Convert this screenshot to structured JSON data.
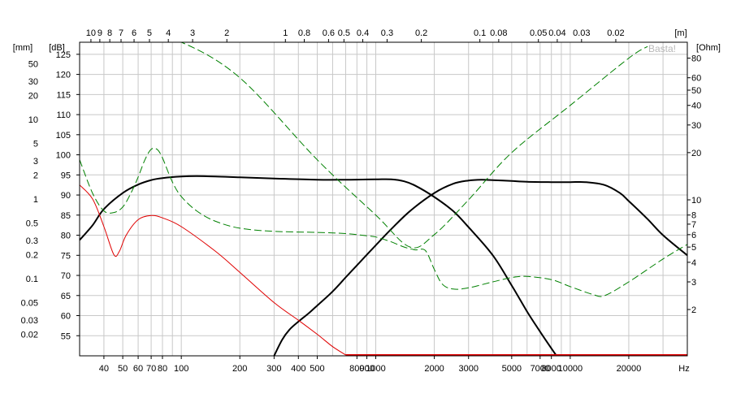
{
  "chart_data": {
    "type": "line",
    "x_axis": {
      "scale": "log",
      "range": [
        30,
        40000
      ],
      "unit_label": "Hz",
      "ticks": [
        {
          "value": 40,
          "label": "40"
        },
        {
          "value": 50,
          "label": "50"
        },
        {
          "value": 60,
          "label": "60"
        },
        {
          "value": 70,
          "label": "70"
        },
        {
          "value": 80,
          "label": "80"
        },
        {
          "value": 100,
          "label": "100"
        },
        {
          "value": 200,
          "label": "200"
        },
        {
          "value": 300,
          "label": "300"
        },
        {
          "value": 400,
          "label": "400"
        },
        {
          "value": 500,
          "label": "500"
        },
        {
          "value": 800,
          "label": "800"
        },
        {
          "value": 900,
          "label": "900"
        },
        {
          "value": 1000,
          "label": "1000"
        },
        {
          "value": 2000,
          "label": "2000"
        },
        {
          "value": 3000,
          "label": "3000"
        },
        {
          "value": 5000,
          "label": "5000"
        },
        {
          "value": 7000,
          "label": "7000"
        },
        {
          "value": 8000,
          "label": "8000"
        },
        {
          "value": 10000,
          "label": "10000"
        },
        {
          "value": 20000,
          "label": "20000"
        }
      ]
    },
    "top_axis": {
      "unit_label": "[m]",
      "ticks": [
        {
          "value": 10,
          "label": "10"
        },
        {
          "value": 9,
          "label": "9"
        },
        {
          "value": 8,
          "label": "8"
        },
        {
          "value": 7,
          "label": "7"
        },
        {
          "value": 6,
          "label": "6"
        },
        {
          "value": 5,
          "label": "5"
        },
        {
          "value": 4,
          "label": "4"
        },
        {
          "value": 3,
          "label": "3"
        },
        {
          "value": 2,
          "label": "2"
        },
        {
          "value": 1,
          "label": "1"
        },
        {
          "value": 0.8,
          "label": "0.8"
        },
        {
          "value": 0.6,
          "label": "0.6"
        },
        {
          "value": 0.5,
          "label": "0.5"
        },
        {
          "value": 0.4,
          "label": "0.4"
        },
        {
          "value": 0.3,
          "label": "0.3"
        },
        {
          "value": 0.2,
          "label": "0.2"
        },
        {
          "value": 0.1,
          "label": "0.1"
        },
        {
          "value": 0.08,
          "label": "0.08"
        },
        {
          "value": 0.05,
          "label": "0.05"
        },
        {
          "value": 0.04,
          "label": "0.04"
        },
        {
          "value": 0.03,
          "label": "0.03"
        },
        {
          "value": 0.02,
          "label": "0.02"
        }
      ]
    },
    "y_axis_db": {
      "unit_label": "[dB]",
      "range": [
        50,
        128
      ],
      "ticks": [
        55,
        60,
        65,
        70,
        75,
        80,
        85,
        90,
        95,
        100,
        105,
        110,
        115,
        120,
        125
      ]
    },
    "y_axis_mm": {
      "unit_label": "[mm]",
      "scale": "log",
      "ticks": [
        {
          "value": 50,
          "label": "50"
        },
        {
          "value": 30,
          "label": "30"
        },
        {
          "value": 20,
          "label": "20"
        },
        {
          "value": 10,
          "label": "10"
        },
        {
          "value": 5,
          "label": "5"
        },
        {
          "value": 3,
          "label": "3"
        },
        {
          "value": 2,
          "label": "2"
        },
        {
          "value": 1,
          "label": "1"
        },
        {
          "value": 0.5,
          "label": "0.5"
        },
        {
          "value": 0.3,
          "label": "0.3"
        },
        {
          "value": 0.2,
          "label": "0.2"
        },
        {
          "value": 0.1,
          "label": "0.1"
        },
        {
          "value": 0.05,
          "label": "0.05"
        },
        {
          "value": 0.03,
          "label": "0.03"
        },
        {
          "value": 0.02,
          "label": "0.02"
        }
      ]
    },
    "y_axis_ohm": {
      "unit_label": "[Ohm]",
      "scale": "log",
      "ticks": [
        {
          "value": 80,
          "label": "80"
        },
        {
          "value": 60,
          "label": "60"
        },
        {
          "value": 50,
          "label": "50"
        },
        {
          "value": 40,
          "label": "40"
        },
        {
          "value": 30,
          "label": "30"
        },
        {
          "value": 20,
          "label": "20"
        },
        {
          "value": 10,
          "label": "10"
        },
        {
          "value": 8,
          "label": "8"
        },
        {
          "value": 7,
          "label": "7"
        },
        {
          "value": 6,
          "label": "6"
        },
        {
          "value": 5,
          "label": "5"
        },
        {
          "value": 4,
          "label": "4"
        },
        {
          "value": 3,
          "label": "3"
        },
        {
          "value": 2,
          "label": "2"
        }
      ]
    },
    "grid": true,
    "watermark": "Basta!",
    "series": [
      {
        "color": "#000000",
        "style": "solid",
        "axis": "dB",
        "points": [
          [
            30,
            78.8
          ],
          [
            35,
            82.5
          ],
          [
            40,
            86.5
          ],
          [
            50,
            90.5
          ],
          [
            60,
            92.6
          ],
          [
            70,
            93.7
          ],
          [
            80,
            94.2
          ],
          [
            100,
            94.6
          ],
          [
            120,
            94.7
          ],
          [
            150,
            94.6
          ],
          [
            200,
            94.4
          ],
          [
            300,
            94.1
          ],
          [
            500,
            93.8
          ],
          [
            700,
            93.8
          ],
          [
            1000,
            93.9
          ],
          [
            1200,
            93.9
          ],
          [
            1400,
            93.4
          ],
          [
            1600,
            92.3
          ],
          [
            2000,
            89.5
          ],
          [
            2500,
            86
          ],
          [
            3000,
            82
          ],
          [
            4000,
            75
          ],
          [
            5000,
            67.5
          ],
          [
            6000,
            61
          ],
          [
            7000,
            56
          ],
          [
            8500,
            50
          ]
        ]
      },
      {
        "color": "#000000",
        "style": "solid",
        "axis": "dB",
        "points": [
          [
            300,
            50
          ],
          [
            330,
            54
          ],
          [
            360,
            56.5
          ],
          [
            400,
            58.5
          ],
          [
            450,
            60.5
          ],
          [
            500,
            62.5
          ],
          [
            600,
            66
          ],
          [
            700,
            69.5
          ],
          [
            800,
            72.5
          ],
          [
            1000,
            77.5
          ],
          [
            1200,
            81.5
          ],
          [
            1500,
            86
          ],
          [
            2000,
            90.5
          ],
          [
            2500,
            92.8
          ],
          [
            3000,
            93.6
          ],
          [
            3500,
            93.8
          ],
          [
            4000,
            93.7
          ],
          [
            5000,
            93.5
          ],
          [
            6000,
            93.3
          ],
          [
            8000,
            93.2
          ],
          [
            10000,
            93.2
          ],
          [
            12000,
            93.2
          ],
          [
            15000,
            92.5
          ],
          [
            18000,
            90.5
          ],
          [
            20000,
            88.5
          ],
          [
            25000,
            84
          ],
          [
            30000,
            80
          ],
          [
            40000,
            75
          ]
        ]
      },
      {
        "color": "#e00000",
        "style": "solid",
        "axis": "mm",
        "points": [
          [
            30,
            1.5
          ],
          [
            35,
            1.0
          ],
          [
            40,
            0.45
          ],
          [
            45,
            0.2
          ],
          [
            48,
            0.22
          ],
          [
            52,
            0.35
          ],
          [
            60,
            0.55
          ],
          [
            70,
            0.62
          ],
          [
            80,
            0.58
          ],
          [
            100,
            0.45
          ],
          [
            150,
            0.22
          ],
          [
            200,
            0.12
          ],
          [
            300,
            0.05
          ],
          [
            400,
            0.03
          ],
          [
            500,
            0.02
          ],
          [
            600,
            0.014
          ],
          [
            700,
            0.011
          ]
        ]
      },
      {
        "color": "#008000",
        "style": "dashed",
        "axis": "Ohm",
        "points": [
          [
            30,
            18
          ],
          [
            35,
            11
          ],
          [
            40,
            8.5
          ],
          [
            45,
            8.3
          ],
          [
            50,
            9
          ],
          [
            55,
            11
          ],
          [
            60,
            14
          ],
          [
            65,
            18
          ],
          [
            70,
            21
          ],
          [
            75,
            21
          ],
          [
            80,
            18.5
          ],
          [
            90,
            13
          ],
          [
            100,
            10.5
          ],
          [
            120,
            8.5
          ],
          [
            150,
            7.3
          ],
          [
            200,
            6.6
          ],
          [
            300,
            6.3
          ],
          [
            500,
            6.2
          ],
          [
            700,
            6.1
          ],
          [
            900,
            5.9
          ],
          [
            1000,
            5.8
          ],
          [
            1200,
            5.4
          ],
          [
            1400,
            5.0
          ],
          [
            1600,
            4.8
          ],
          [
            1800,
            4.75
          ],
          [
            2000,
            3.6
          ],
          [
            2200,
            2.9
          ],
          [
            2500,
            2.7
          ],
          [
            3000,
            2.75
          ],
          [
            4000,
            3.0
          ],
          [
            5000,
            3.2
          ],
          [
            6000,
            3.25
          ],
          [
            8000,
            3.1
          ],
          [
            10000,
            2.8
          ],
          [
            13000,
            2.5
          ],
          [
            15000,
            2.45
          ],
          [
            20000,
            3.0
          ],
          [
            30000,
            4.2
          ],
          [
            40000,
            5.2
          ]
        ]
      },
      {
        "color": "#008000",
        "style": "dashed",
        "axis": "Ohm",
        "points": [
          [
            75,
            200
          ],
          [
            100,
            150
          ],
          [
            200,
            60
          ],
          [
            500,
            18
          ],
          [
            1000,
            8
          ],
          [
            1500,
            5
          ],
          [
            2000,
            6
          ],
          [
            3000,
            10
          ],
          [
            5000,
            20
          ],
          [
            10000,
            40
          ],
          [
            20000,
            80
          ],
          [
            25000,
            95
          ]
        ]
      }
    ]
  }
}
